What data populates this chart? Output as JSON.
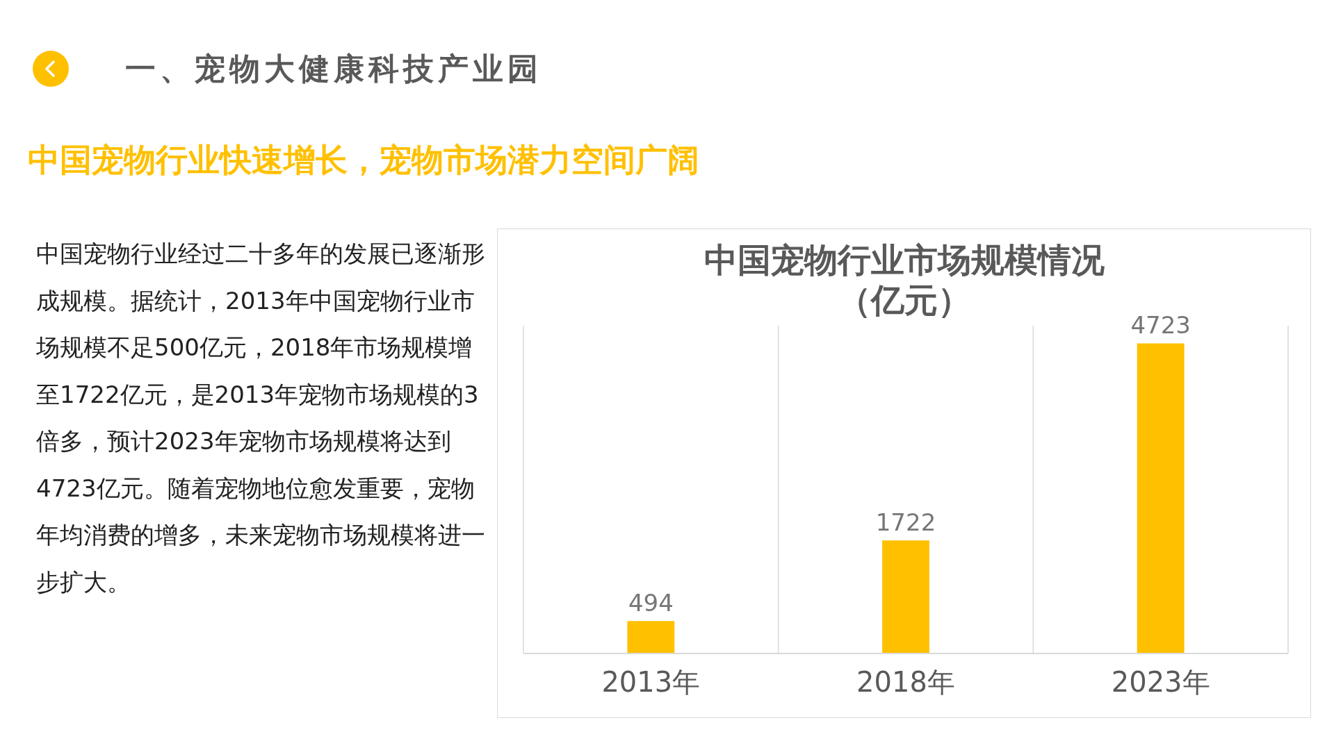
{
  "chart_data": {
    "type": "bar",
    "title": "中国宠物行业市场规模情况（亿元）",
    "categories": [
      "2013年",
      "2018年",
      "2023年"
    ],
    "values": [
      494,
      1722,
      4723
    ],
    "color": "#ffc000",
    "data_labels": true,
    "grid": "x",
    "annotations": [
      "一、宠物大健康科技产业园",
      "中国宠物行业快速增长，宠物市场潜力空间广阔",
      "中国宠物行业经过二十多年的发展已逐渐形成规模。据统计，2013年中国宠物行业市场规模不足500亿元，2018年市场规模增至1722亿元，是2013年宠物市场规模的3倍多，预计2023年宠物市场规模将达到4723亿元。随着宠物地位愈发重要，宠物年均消费的增多，未来宠物市场规模将进一步扩大。"
    ]
  }
}
